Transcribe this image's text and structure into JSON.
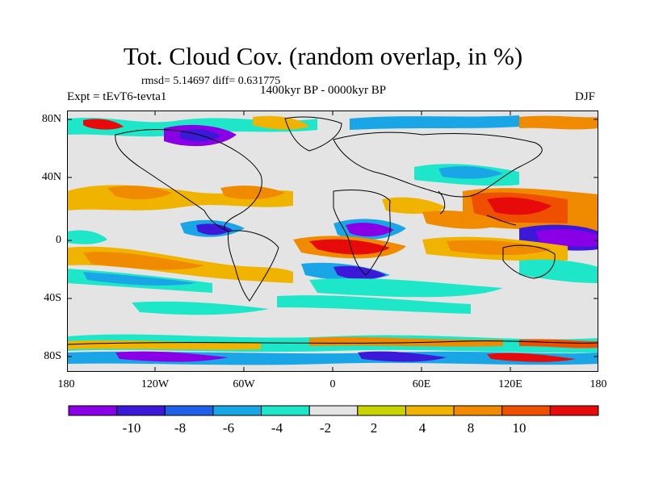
{
  "title": "Tot. Cloud Cov. (random overlap, in %)",
  "stats": "rmsd= 5.14697 diff= 0.631775",
  "experiment": "Expt = tEvT6-tevta1",
  "period": "1400kyr BP - 0000kyr BP",
  "season": "DJF",
  "lat_labels": [
    "80N",
    "40N",
    "0",
    "40S",
    "80S"
  ],
  "lon_labels": [
    "180",
    "120W",
    "60W",
    "0",
    "60E",
    "120E",
    "180"
  ],
  "colorbar": {
    "colors": [
      "#8a00e6",
      "#3c18d8",
      "#1f60e8",
      "#1aa6e6",
      "#1ee6c8",
      "#e4e4e4",
      "#c8d400",
      "#f0b400",
      "#f08a00",
      "#ee5000",
      "#e60a0a"
    ],
    "labels": [
      "-10",
      "-8",
      "-6",
      "-4",
      "-2",
      "2",
      "4",
      "8",
      "10"
    ]
  }
}
